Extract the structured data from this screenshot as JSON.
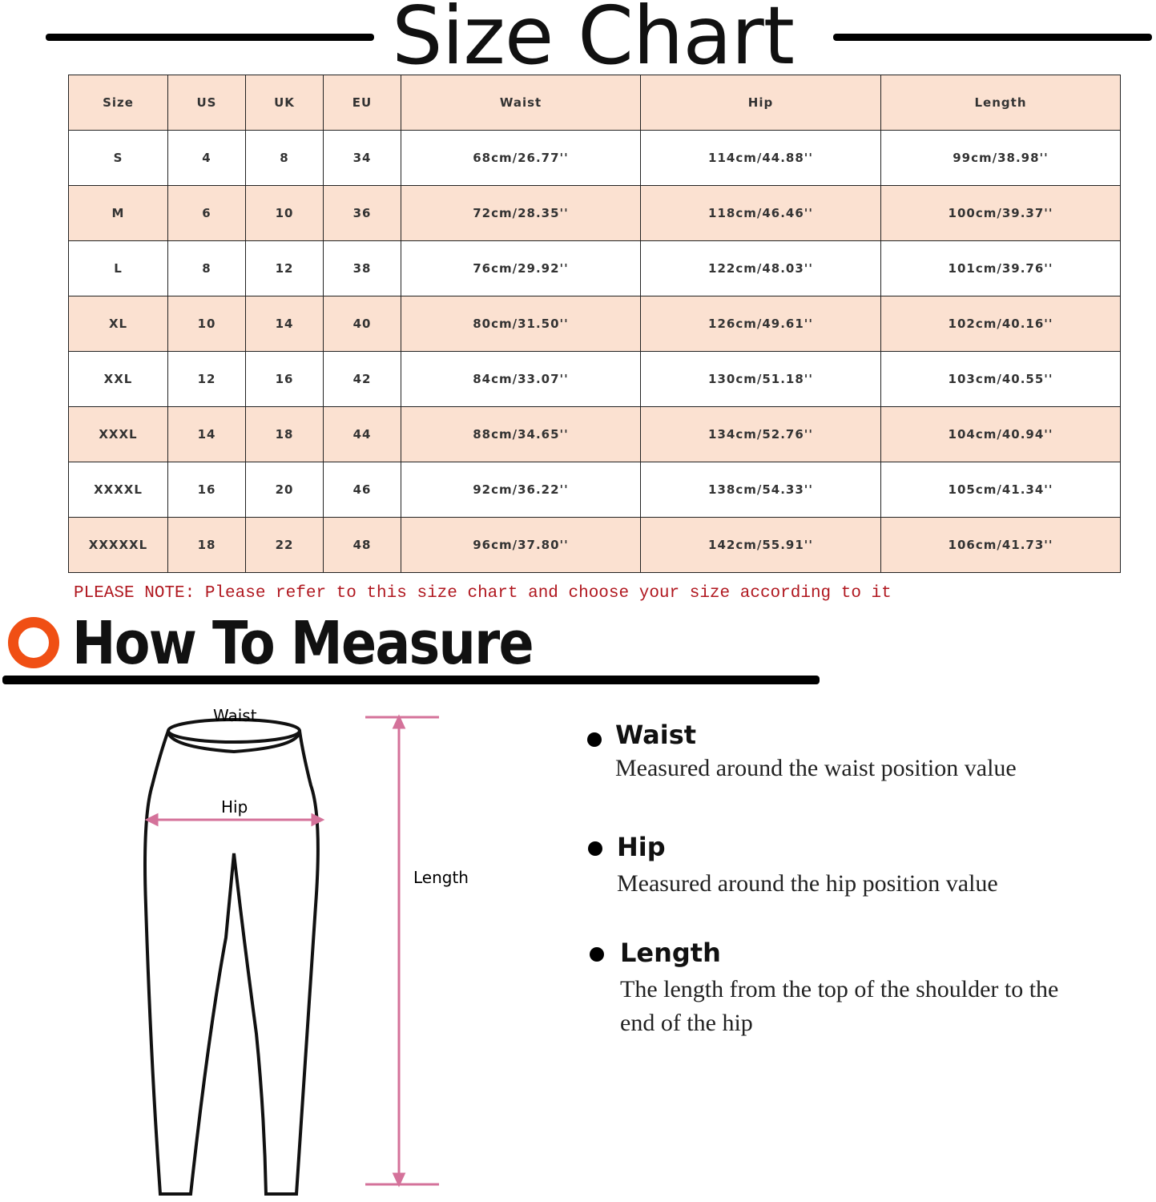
{
  "title": "Size Chart",
  "table": {
    "headers": [
      "Size",
      "US",
      "UK",
      "EU",
      "Waist",
      "Hip",
      "Length"
    ],
    "rows": [
      [
        "S",
        "4",
        "8",
        "34",
        "68cm/26.77''",
        "114cm/44.88''",
        "99cm/38.98''"
      ],
      [
        "M",
        "6",
        "10",
        "36",
        "72cm/28.35''",
        "118cm/46.46''",
        "100cm/39.37''"
      ],
      [
        "L",
        "8",
        "12",
        "38",
        "76cm/29.92''",
        "122cm/48.03''",
        "101cm/39.76''"
      ],
      [
        "XL",
        "10",
        "14",
        "40",
        "80cm/31.50''",
        "126cm/49.61''",
        "102cm/40.16''"
      ],
      [
        "XXL",
        "12",
        "16",
        "42",
        "84cm/33.07''",
        "130cm/51.18''",
        "103cm/40.55''"
      ],
      [
        "XXXL",
        "14",
        "18",
        "44",
        "88cm/34.65''",
        "134cm/52.76''",
        "104cm/40.94''"
      ],
      [
        "XXXXL",
        "16",
        "20",
        "46",
        "92cm/36.22''",
        "138cm/54.33''",
        "105cm/41.34''"
      ],
      [
        "XXXXXL",
        "18",
        "22",
        "48",
        "96cm/37.80''",
        "142cm/55.91''",
        "106cm/41.73''"
      ]
    ]
  },
  "note": "PLEASE NOTE: Please refer to this size chart and choose your size according to it",
  "how_to": {
    "title": "How To Measure",
    "diagram_labels": {
      "waist": "Waist",
      "hip": "Hip",
      "length": "Length"
    },
    "items": [
      {
        "name": "Waist",
        "desc": "Measured around the waist position value"
      },
      {
        "name": "Hip",
        "desc": "Measured around the  hip position value"
      },
      {
        "name": "Length",
        "desc": "The length from the top of the shoulder to the end of the hip"
      }
    ]
  },
  "colors": {
    "header_tint": "#fbe1d1",
    "note_red": "#b0171f",
    "ring_orange": "#f04f14",
    "measure_pink": "#d4729a"
  }
}
